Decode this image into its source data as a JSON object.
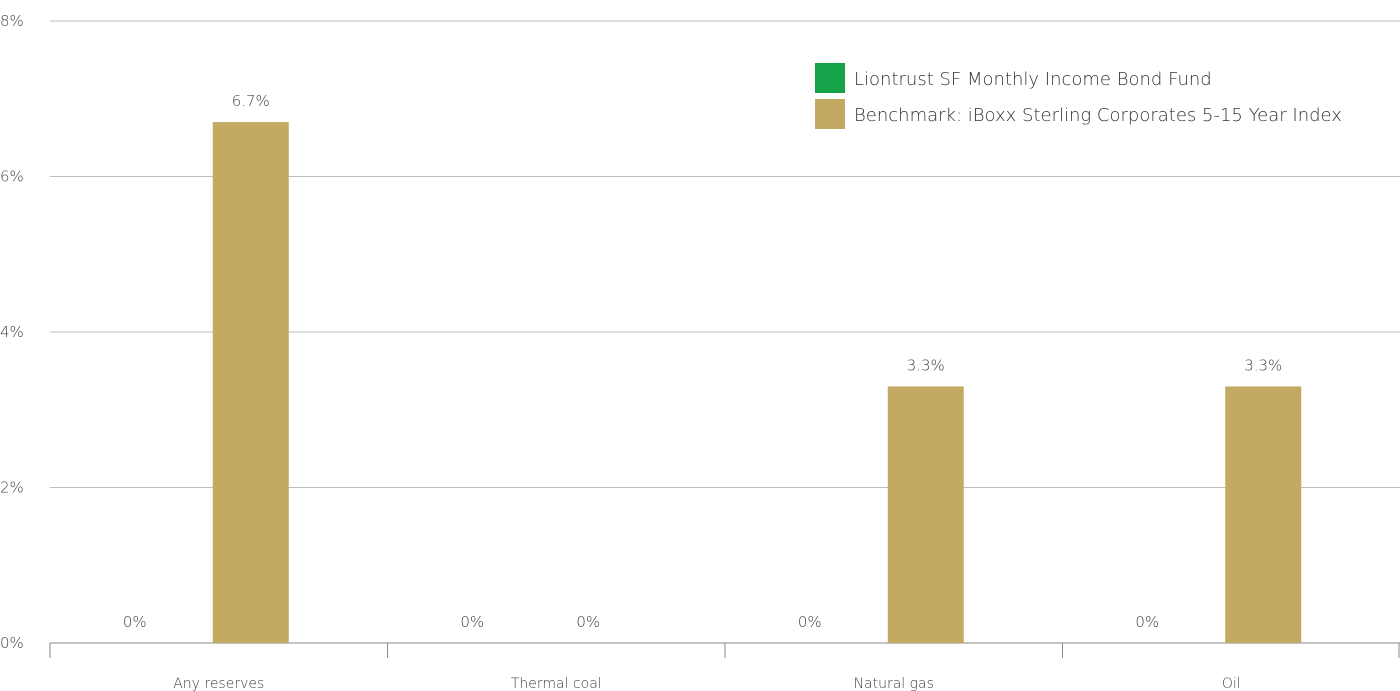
{
  "chart_data": {
    "type": "bar",
    "title": "",
    "xlabel": "",
    "ylabel": "",
    "categories": [
      "Any reserves",
      "Thermal coal",
      "Natural gas",
      "Oil"
    ],
    "series": [
      {
        "name": "Liontrust SF Monthly Income Bond Fund",
        "color": "#16a34a",
        "values": [
          0,
          0,
          0,
          0
        ],
        "labels": [
          "0%",
          "0%",
          "0%",
          "0%"
        ]
      },
      {
        "name": "Benchmark: iBoxx Sterling Corporates 5-15 Year Index",
        "color": "#c4a962",
        "values": [
          6.7,
          0,
          3.3,
          3.3
        ],
        "labels": [
          "6.7%",
          "0%",
          "3.3%",
          "3.3%"
        ]
      }
    ],
    "ylim": [
      0,
      8
    ],
    "yticks": [
      {
        "value": 0,
        "label": "0%"
      },
      {
        "value": 2,
        "label": "2%"
      },
      {
        "value": 4,
        "label": "4%"
      },
      {
        "value": 6,
        "label": "6%"
      },
      {
        "value": 8,
        "label": "8%"
      }
    ],
    "grid": true,
    "legend_position": "top-right"
  }
}
